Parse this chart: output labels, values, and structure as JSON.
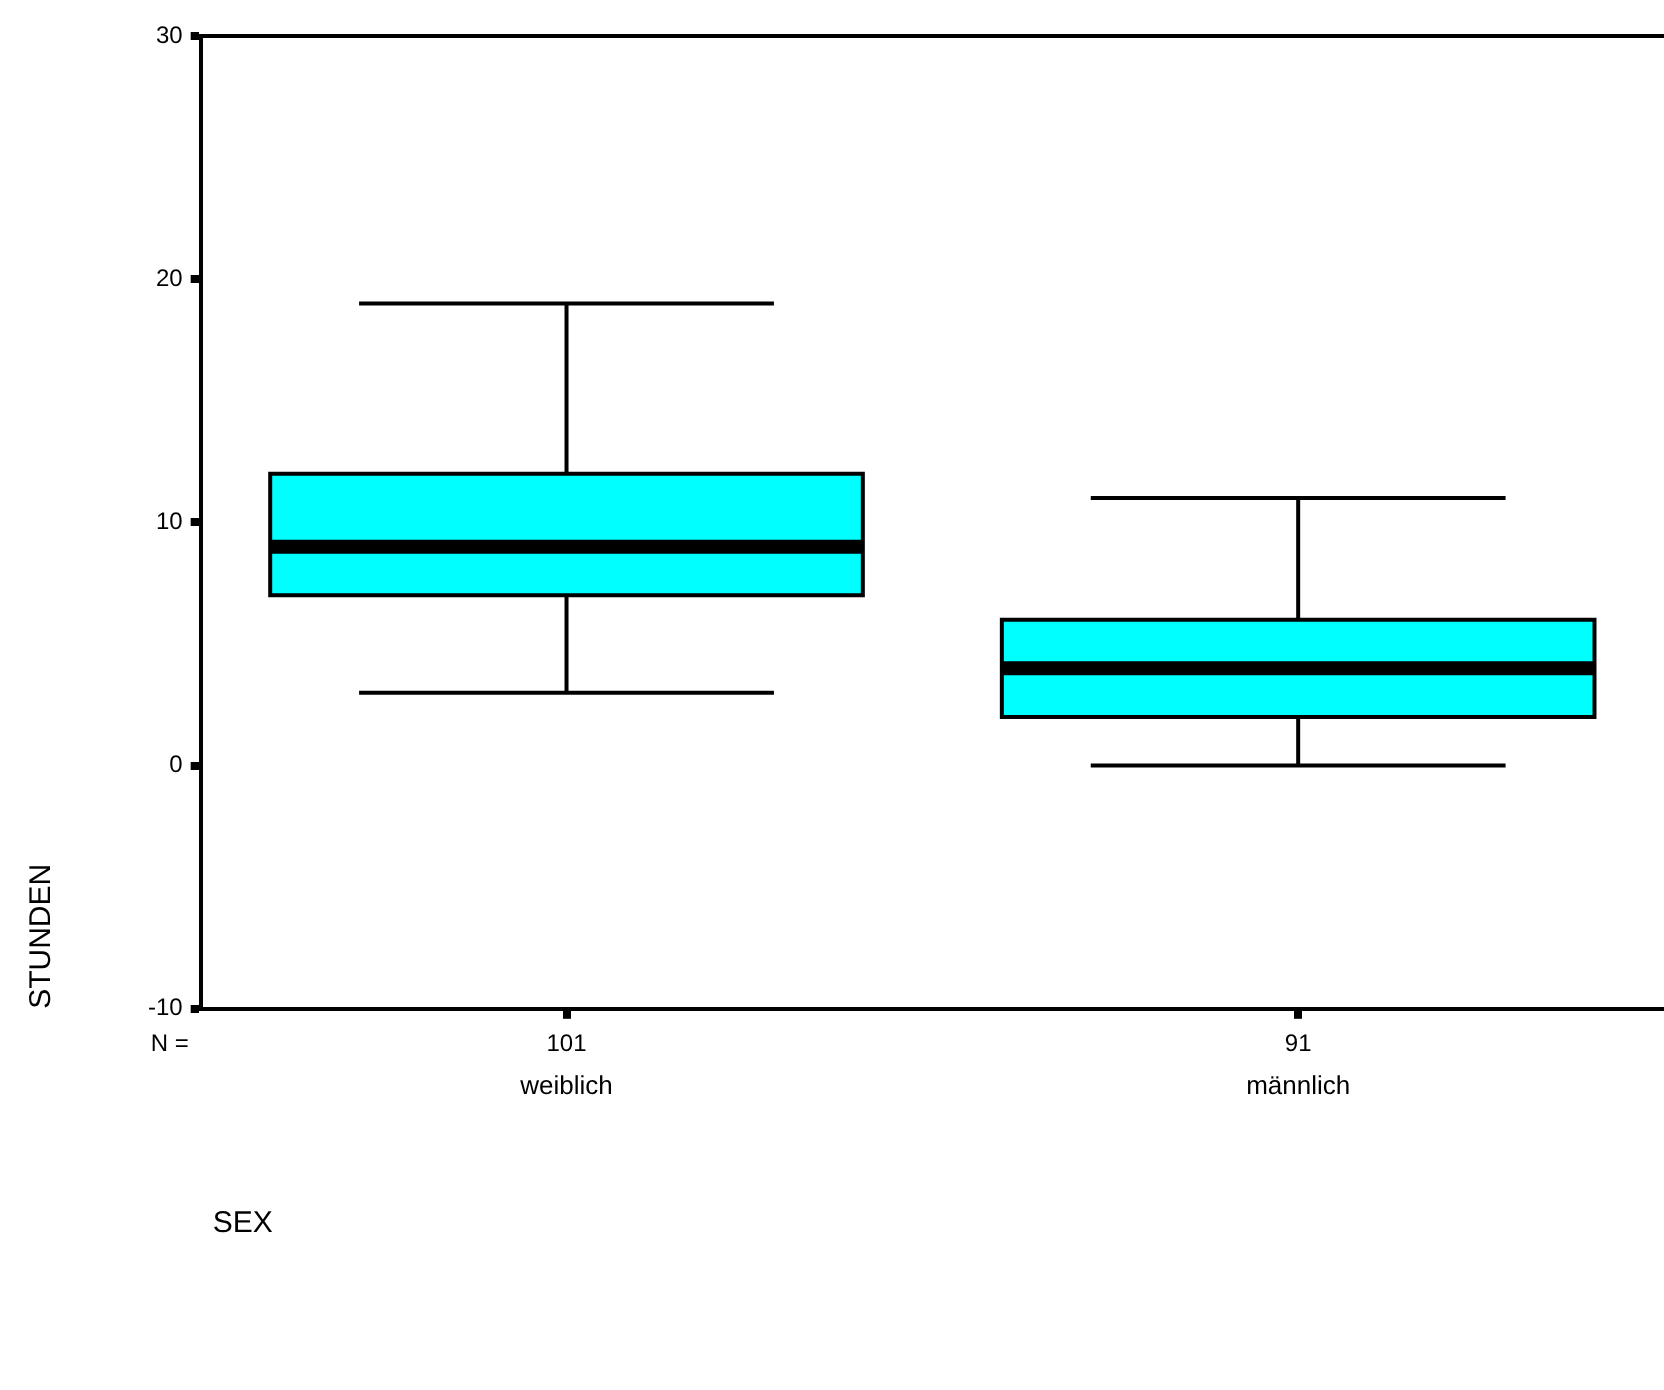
{
  "chart_data": {
    "type": "box",
    "categories": [
      "weiblich",
      "männlich"
    ],
    "boxes": [
      {
        "low": 3,
        "q1": 7,
        "median": 9,
        "q3": 12,
        "high": 19
      },
      {
        "low": 0,
        "q1": 2,
        "median": 4,
        "q3": 6,
        "high": 11
      }
    ],
    "color": "#00ffff",
    "ylabel": "STUNDEN",
    "ylim": [
      -10,
      30
    ],
    "yticks": [
      -10,
      0,
      10,
      20,
      30
    ],
    "annotations": [
      "N =",
      "101",
      "91",
      "SEX"
    ],
    "grid": false,
    "legend": false
  }
}
